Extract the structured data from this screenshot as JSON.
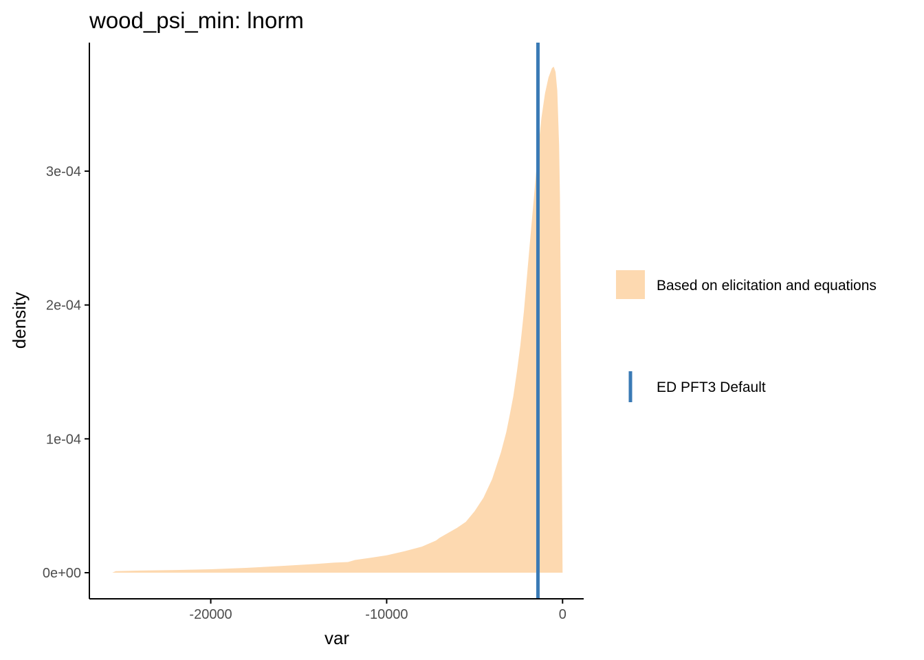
{
  "chart_data": {
    "type": "area",
    "title": "wood_psi_min: lnorm",
    "xlabel": "var",
    "ylabel": "density",
    "xlim": [
      -26900,
      1200
    ],
    "ylim": [
      -1.95e-05,
      0.000396
    ],
    "x_ticks": [
      {
        "value": -20000,
        "label": "-20000"
      },
      {
        "value": -10000,
        "label": "-10000"
      },
      {
        "value": 0,
        "label": "0"
      }
    ],
    "y_ticks": [
      {
        "value": 0,
        "label": "0e+00"
      },
      {
        "value": 0.0001,
        "label": "1e-04"
      },
      {
        "value": 0.0002,
        "label": "2e-04"
      },
      {
        "value": 0.0003,
        "label": "3e-04"
      }
    ],
    "grid": false,
    "legend_position": "right",
    "series": [
      {
        "name": "Based on elicitation and equations",
        "kind": "density-area",
        "color": "#fdd9b0",
        "points": [
          [
            -25600,
            0.0
          ],
          [
            -25400,
            1.2e-06
          ],
          [
            -24000,
            1.6e-06
          ],
          [
            -22000,
            2e-06
          ],
          [
            -20000,
            2.6e-06
          ],
          [
            -18000,
            3.6e-06
          ],
          [
            -16000,
            5e-06
          ],
          [
            -14000,
            6.6e-06
          ],
          [
            -13000,
            7.5e-06
          ],
          [
            -12200,
            8e-06
          ],
          [
            -11800,
            9.5e-06
          ],
          [
            -11000,
            1.1e-05
          ],
          [
            -10000,
            1.3e-05
          ],
          [
            -9000,
            1.6e-05
          ],
          [
            -8000,
            1.95e-05
          ],
          [
            -7200,
            2.4e-05
          ],
          [
            -7000,
            2.6e-05
          ],
          [
            -6000,
            3.35e-05
          ],
          [
            -5500,
            3.8e-05
          ],
          [
            -5000,
            4.6e-05
          ],
          [
            -4500,
            5.6e-05
          ],
          [
            -4000,
            7e-05
          ],
          [
            -3500,
            9e-05
          ],
          [
            -3200,
            0.000105
          ],
          [
            -3000,
            0.000118
          ],
          [
            -2800,
            0.000132
          ],
          [
            -2600,
            0.00015
          ],
          [
            -2400,
            0.00017
          ],
          [
            -2200,
            0.000195
          ],
          [
            -2000,
            0.000225
          ],
          [
            -1800,
            0.000255
          ],
          [
            -1600,
            0.000285
          ],
          [
            -1400,
            0.000315
          ],
          [
            -1200,
            0.00034
          ],
          [
            -1000,
            0.000358
          ],
          [
            -800,
            0.00037
          ],
          [
            -600,
            0.000377
          ],
          [
            -500,
            0.000378
          ],
          [
            -400,
            0.000374
          ],
          [
            -300,
            0.00036
          ],
          [
            -200,
            0.00032
          ],
          [
            -150,
            0.00028
          ],
          [
            -100,
            0.0002
          ],
          [
            -50,
            0.0001
          ],
          [
            0,
            0.0
          ]
        ]
      },
      {
        "name": "ED PFT3 Default",
        "kind": "vline",
        "x": -1400,
        "color": "#3a7ab5"
      }
    ]
  }
}
